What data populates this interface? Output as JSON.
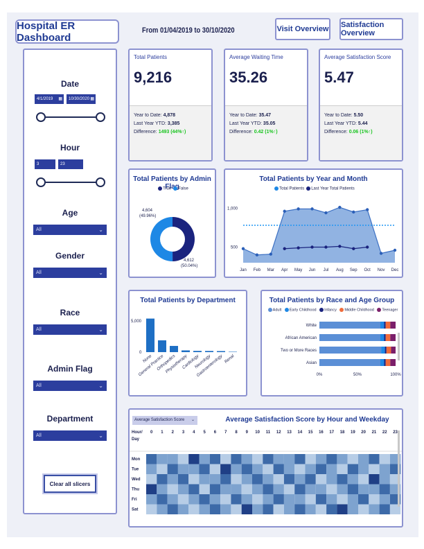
{
  "header": {
    "title": "Hospital ER Dashboard",
    "date_range": "From 01/04/2019 to 30/10/2020",
    "nav": [
      "Visit Overview",
      "Satisfaction Overview"
    ]
  },
  "sidebar": {
    "date_label": "Date",
    "date_from": "4/1/2019",
    "date_to": "10/30/2020",
    "hour_label": "Hour",
    "hour_from": "3",
    "hour_to": "23",
    "age_label": "Age",
    "age_value": "All",
    "gender_label": "Gender",
    "gender_value": "All",
    "race_label": "Race",
    "race_value": "All",
    "admin_label": "Admin Flag",
    "admin_value": "All",
    "dept_label": "Department",
    "dept_value": "All",
    "clear": "Clear all slicers"
  },
  "kpis": [
    {
      "title": "Total Patients",
      "value": "9,216",
      "ytd_label": "Year to Date:",
      "ytd": "4,878",
      "last_label": "Last Year YTD:",
      "last": "3,385",
      "diff_label": "Difference:",
      "diff": "1493 (44%↑)"
    },
    {
      "title": "Average Waiting Time",
      "value": "35.26",
      "ytd_label": "Year to Date:",
      "ytd": "35.47",
      "last_label": "Last Year YTD:",
      "last": "35.05",
      "diff_label": "Difference:",
      "diff": "0.42 (1%↑)"
    },
    {
      "title": "Average Satisfaction Score",
      "value": "5.47",
      "ytd_label": "Year to Date:",
      "ytd": "5.50",
      "last_label": "Last Year YTD:",
      "last": "5.44",
      "diff_label": "Difference:",
      "diff": "0.06 (1%↑)"
    }
  ],
  "colors": {
    "accent": "#1f3a93",
    "dark_navy": "#1a237e",
    "mid_blue": "#1e88e5",
    "area": "#5b8fd6",
    "green": "#17c41d"
  },
  "chart_data": [
    {
      "type": "pie",
      "title": "Total Patients by Admin Flag",
      "legend": [
        "True",
        "False"
      ],
      "labels": [
        "True",
        "False"
      ],
      "values": [
        4604,
        4612
      ],
      "percent_labels": [
        "4,604\n(49.96%)",
        "4,612\n(50.04%)"
      ],
      "label_true": "4,604",
      "pct_true": "(49.96%)",
      "label_false": "4,612",
      "pct_false": "(50.04%)"
    },
    {
      "type": "area",
      "title": "Total Patients by Year and Month",
      "legend": [
        "Total Patients",
        "Last Year Total Patients"
      ],
      "categories": [
        "Jan",
        "Feb",
        "Mar",
        "Apr",
        "May",
        "Jun",
        "Jul",
        "Aug",
        "Sep",
        "Oct",
        "Nov",
        "Dec"
      ],
      "series": [
        {
          "name": "Total Patients",
          "values": [
            480,
            400,
            410,
            960,
            990,
            990,
            940,
            1010,
            950,
            980,
            420,
            460
          ]
        },
        {
          "name": "Last Year Total Patients",
          "values": [
            null,
            null,
            null,
            480,
            490,
            500,
            500,
            510,
            480,
            500,
            null,
            null
          ]
        }
      ],
      "yticks": [
        "1,000",
        "500"
      ],
      "ylim": [
        300,
        1100
      ]
    },
    {
      "type": "bar",
      "title": "Total Patients by Department",
      "categories": [
        "None",
        "General Practice",
        "Orthopedics",
        "Physiotherapy",
        "Cardiology",
        "Neurology",
        "Gastroenterology",
        "Renal"
      ],
      "values": [
        5400,
        1900,
        1000,
        280,
        200,
        190,
        170,
        60
      ],
      "yticks": [
        "5,000",
        "0"
      ],
      "ylim": [
        0,
        5800
      ]
    },
    {
      "type": "bar",
      "title": "Total Patients by Race and Age Group",
      "legend": [
        "Adult",
        "Early Childhood",
        "Infancy",
        "Middle Childhood",
        "Teenager"
      ],
      "categories": [
        "White",
        "African American",
        "Two or More Races",
        "Asian"
      ],
      "series": [
        {
          "name": "Adult",
          "values": [
            80,
            80,
            81,
            80
          ]
        },
        {
          "name": "Early Childhood",
          "values": [
            5,
            5,
            5,
            5
          ]
        },
        {
          "name": "Infancy",
          "values": [
            2,
            2,
            2,
            2
          ]
        },
        {
          "name": "Middle Childhood",
          "values": [
            6,
            6,
            6,
            6
          ]
        },
        {
          "name": "Teenager",
          "values": [
            7,
            7,
            6,
            7
          ]
        }
      ],
      "xticks": [
        "0%",
        "50%",
        "100%"
      ]
    },
    {
      "type": "heatmap",
      "title": "Average Satisfaction Score by Hour and Weekday",
      "dropdown": "Average Satisfaction Score",
      "corner_label": "Hour/ Day",
      "x": [
        "0",
        "1",
        "2",
        "3",
        "4",
        "5",
        "6",
        "7",
        "8",
        "9",
        "10",
        "11",
        "12",
        "13",
        "14",
        "15",
        "16",
        "17",
        "18",
        "19",
        "20",
        "21",
        "22",
        "23"
      ],
      "y": [
        "Mon",
        "Tue",
        "Wed",
        "Thu",
        "Fri",
        "Sat"
      ],
      "values": [
        [
          4,
          5,
          5,
          6,
          3,
          5,
          4,
          6,
          4,
          5,
          6,
          4,
          5,
          5,
          4,
          6,
          5,
          4,
          5,
          6,
          5,
          4,
          6,
          5
        ],
        [
          5,
          6,
          4,
          5,
          5,
          4,
          6,
          3,
          5,
          4,
          5,
          6,
          4,
          5,
          6,
          5,
          4,
          5,
          6,
          4,
          5,
          6,
          5,
          4
        ],
        [
          6,
          4,
          5,
          4,
          6,
          5,
          5,
          4,
          6,
          5,
          4,
          5,
          6,
          4,
          5,
          4,
          6,
          5,
          4,
          5,
          6,
          3,
          5,
          6
        ],
        [
          3,
          5,
          6,
          5,
          4,
          6,
          4,
          5,
          5,
          6,
          5,
          4,
          5,
          6,
          4,
          5,
          5,
          6,
          5,
          4,
          5,
          5,
          4,
          5
        ],
        [
          5,
          4,
          5,
          6,
          5,
          4,
          5,
          6,
          4,
          5,
          6,
          5,
          4,
          5,
          5,
          6,
          4,
          5,
          6,
          5,
          4,
          6,
          5,
          4
        ],
        [
          6,
          5,
          4,
          5,
          6,
          5,
          4,
          5,
          6,
          3,
          5,
          4,
          6,
          5,
          4,
          5,
          6,
          4,
          3,
          5,
          6,
          5,
          4,
          6
        ]
      ]
    }
  ]
}
